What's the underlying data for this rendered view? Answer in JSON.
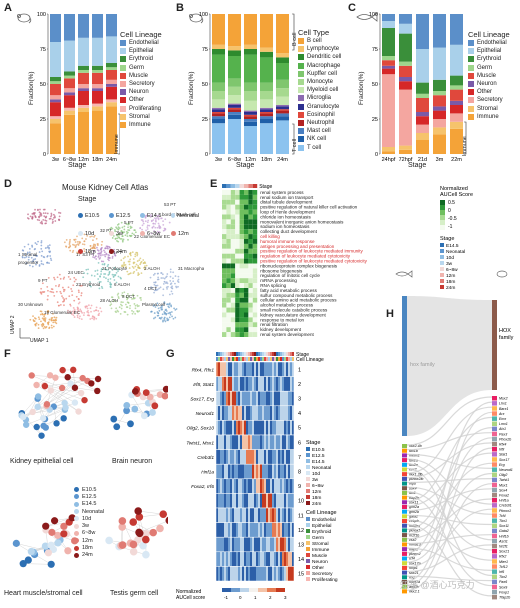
{
  "panels": {
    "a": "A",
    "b": "B",
    "c": "C",
    "d": "D",
    "e": "E",
    "f": "F",
    "g": "G",
    "h": "H"
  },
  "panelA": {
    "ylabel": "Fraction(%)",
    "xlabel": "Stage",
    "yticks": [
      "0",
      "25",
      "50",
      "75",
      "100"
    ],
    "categories": [
      "3w",
      "6~8w",
      "12m",
      "18m",
      "24m"
    ],
    "legend_title": "Cell Lineage",
    "legend": [
      {
        "name": "Endothelial",
        "color": "#5b8fc9"
      },
      {
        "name": "Epithelial",
        "color": "#a9d0ea"
      },
      {
        "name": "Erythroid",
        "color": "#3a8f3a"
      },
      {
        "name": "Germ",
        "color": "#9ed68c"
      },
      {
        "name": "Muscle",
        "color": "#e0483c"
      },
      {
        "name": "Secretory",
        "color": "#f4a6a0"
      },
      {
        "name": "Neuron",
        "color": "#7a5aa8"
      },
      {
        "name": "Other",
        "color": "#d62728"
      },
      {
        "name": "Proliferating",
        "color": "#f7b7b2"
      },
      {
        "name": "Stromal",
        "color": "#f6c36c"
      },
      {
        "name": "Immune",
        "color": "#f4a338"
      }
    ],
    "bracket_label": "Immune"
  },
  "panelB": {
    "ylabel": "Fraction(%)",
    "xlabel": "Stage",
    "yticks": [
      "0",
      "25",
      "50",
      "75",
      "100"
    ],
    "categories": [
      "3w",
      "6~8w",
      "12m",
      "18m",
      "24m"
    ],
    "legend_title": "Cell Type",
    "legend": [
      {
        "name": "B cell",
        "color": "#f4a338"
      },
      {
        "name": "Lymphocyte",
        "color": "#f6c36c"
      },
      {
        "name": "Dendritic cell",
        "color": "#2e8b2e"
      },
      {
        "name": "Macrophage",
        "color": "#55b24d"
      },
      {
        "name": "Kupffer cell",
        "color": "#7fc66e"
      },
      {
        "name": "Monocyte",
        "color": "#a6d98f"
      },
      {
        "name": "Myeloid cell",
        "color": "#c6e8b0"
      },
      {
        "name": "Microglia",
        "color": "#8c6bb1"
      },
      {
        "name": "Granulocyte",
        "color": "#2c2f8f"
      },
      {
        "name": "Eosinophil",
        "color": "#e0483c"
      },
      {
        "name": "Neutrophil",
        "color": "#b22222"
      },
      {
        "name": "Mast cell",
        "color": "#4a7fc1"
      },
      {
        "name": "NK cell",
        "color": "#1f5fa8"
      },
      {
        "name": "T cell",
        "color": "#8cc3ef"
      }
    ],
    "bracket_b": "B cell",
    "bracket_t": "T cell"
  },
  "panelC": {
    "ylabel": "Fraction(%)",
    "xlabel": "Stage",
    "yticks": [
      "0",
      "25",
      "50",
      "75",
      "100"
    ],
    "categories": [
      "24hpf",
      "72hpf",
      "21d",
      "3m",
      "22m"
    ],
    "legend_title": "Cell Lineage",
    "legend": [
      {
        "name": "Endothelial",
        "color": "#5b8fc9"
      },
      {
        "name": "Epithelial",
        "color": "#a9d0ea"
      },
      {
        "name": "Erythroid",
        "color": "#3a8f3a"
      },
      {
        "name": "Germ",
        "color": "#9ed68c"
      },
      {
        "name": "Muscle",
        "color": "#e0483c"
      },
      {
        "name": "Neuron",
        "color": "#7a5aa8"
      },
      {
        "name": "Other",
        "color": "#d62728"
      },
      {
        "name": "Secretory",
        "color": "#f4a6a0"
      },
      {
        "name": "Stromal",
        "color": "#f6c36c"
      },
      {
        "name": "Immune",
        "color": "#f4a338"
      }
    ],
    "bracket_label": "Immune"
  },
  "panelD": {
    "title": "Mouse Kidney Cell Atlas",
    "legend_title": "Stage",
    "stages": [
      {
        "name": "E10.5",
        "color": "#2c6fb3"
      },
      {
        "name": "E12.5",
        "color": "#5b95cf"
      },
      {
        "name": "E14.5",
        "color": "#8fbde3"
      },
      {
        "name": "Neonatal",
        "color": "#b9d7ee"
      },
      {
        "name": "10d",
        "color": "#d9e8f4"
      },
      {
        "name": "3w",
        "color": "#f2d9d7"
      },
      {
        "name": "6~8w",
        "color": "#f0b3ad"
      },
      {
        "name": "12m",
        "color": "#e07a73"
      },
      {
        "name": "18m",
        "color": "#c63a33"
      },
      {
        "name": "24m",
        "color": "#8b1a1a"
      }
    ],
    "umap1": "UMAP 1",
    "umap2": "UMAP 2",
    "cluster_labels": [
      "53 PT",
      "border brush cell",
      "1 Stromal",
      "progenitor",
      "32 PT",
      "17 S3 PT",
      "21 Podocyte",
      "3 ALOH",
      "22 Glomerular EC",
      "31 Macrophage",
      "24 UEC",
      "30 Unknown",
      "19 Glomerular EC",
      "8 DCT",
      "Plasma cell",
      "9 PT",
      "6 ALOH",
      "4 DCT",
      "23 Erythroid",
      "28 ALOH",
      "34 PT",
      "5 PT"
    ]
  },
  "panelE": {
    "legend_title": "Normalized AUCell Score",
    "scale_ticks": [
      "0.5",
      "0",
      "-0.5",
      "-1"
    ],
    "stage_title": "Stage",
    "stages": [
      "E14.5",
      "Neonatal",
      "10d",
      "3w",
      "6~8w",
      "12m",
      "18m",
      "24m"
    ],
    "header_label": "Stage",
    "terms": [
      {
        "label": "renal system process",
        "red": false
      },
      {
        "label": "renal sodium ion transport",
        "red": false
      },
      {
        "label": "distal tubule development",
        "red": false
      },
      {
        "label": "positive regulation of natural killer cell activation",
        "red": false
      },
      {
        "label": "loop of Henle development",
        "red": false
      },
      {
        "label": "chloride ion homeostasis",
        "red": false
      },
      {
        "label": "monovalent inorganic anion homeostasis",
        "red": false
      },
      {
        "label": "sodium ion homeostasis",
        "red": false
      },
      {
        "label": "collecting duct development",
        "red": false
      },
      {
        "label": "cell killing",
        "red": true
      },
      {
        "label": "humoral immune response",
        "red": true
      },
      {
        "label": "antigen processing and presentation",
        "red": true
      },
      {
        "label": "positive regulation of leukocyte mediated immunity",
        "red": true
      },
      {
        "label": "regulation of leukocyte mediated cytotoxicity",
        "red": true
      },
      {
        "label": "positive regulation of leukocyte mediated cytotoxicity",
        "red": true
      },
      {
        "label": "ribonucleoprotein complex biogenesis",
        "red": false
      },
      {
        "label": "ribosome biogenesis",
        "red": false
      },
      {
        "label": "regulation of mitotic cell cycle",
        "red": false
      },
      {
        "label": "mRNA processing",
        "red": false
      },
      {
        "label": "RNA splicing",
        "red": false
      },
      {
        "label": "fatty acid metabolic process",
        "red": false
      },
      {
        "label": "sulfur compound metabolic process",
        "red": false
      },
      {
        "label": "cellular amino acid metabolic process",
        "red": false
      },
      {
        "label": "alcohol metabolic process",
        "red": false
      },
      {
        "label": "small molecule catabolic process",
        "red": false
      },
      {
        "label": "kidney vasculature development",
        "red": false
      },
      {
        "label": "response to metal ion",
        "red": false
      },
      {
        "label": "renal filtration",
        "red": false
      },
      {
        "label": "kidney development",
        "red": false
      },
      {
        "label": "renal system development",
        "red": false
      }
    ]
  },
  "panelF": {
    "titles": [
      "Kidney epithelial cell",
      "Brain neuron",
      "Heart muscle/stromal cell",
      "Testis germ cell"
    ],
    "stages": [
      {
        "name": "E10.5",
        "color": "#2c6fb3"
      },
      {
        "name": "E12.5",
        "color": "#5b95cf"
      },
      {
        "name": "E14.5",
        "color": "#8fbde3"
      },
      {
        "name": "Neonatal",
        "color": "#b9d7ee"
      },
      {
        "name": "10d",
        "color": "#d9e8f4"
      },
      {
        "name": "3w",
        "color": "#f2d9d7"
      },
      {
        "name": "6~8w",
        "color": "#f0b3ad"
      },
      {
        "name": "12m",
        "color": "#e07a73"
      },
      {
        "name": "18m",
        "color": "#c63a33"
      },
      {
        "name": "24m",
        "color": "#8b1a1a"
      }
    ]
  },
  "panelG": {
    "genes": [
      "Rfx4, Rfx1",
      "Irf8, Stat1",
      "Sox17, Erg",
      "Neurod1",
      "Olig2, Sox10",
      "Twist1, Msx1",
      "Creb3l1",
      "Hnf1a",
      "Foxa2, Irf6"
    ],
    "row_numbers": [
      "1",
      "2",
      "3",
      "4",
      "5",
      "6",
      "7",
      "8",
      "9",
      "10",
      "11",
      "12",
      "13",
      "14",
      "15"
    ],
    "header_labels": [
      "Stage",
      "Cell Lineage"
    ],
    "stage_title": "Stage",
    "stage_items": [
      {
        "name": "E10.5",
        "color": "#2c6fb3"
      },
      {
        "name": "E12.5",
        "color": "#5b95cf"
      },
      {
        "name": "E14.5",
        "color": "#8fbde3"
      },
      {
        "name": "Neonatal",
        "color": "#b9d7ee"
      },
      {
        "name": "10d",
        "color": "#d9e8f4"
      },
      {
        "name": "3w",
        "color": "#f2d9d7"
      },
      {
        "name": "6~8w",
        "color": "#f0b3ad"
      },
      {
        "name": "12m",
        "color": "#e07a73"
      },
      {
        "name": "18m",
        "color": "#c63a33"
      },
      {
        "name": "24m",
        "color": "#8b1a1a"
      }
    ],
    "lineage_title": "Cell Lineage",
    "lineage_items": [
      {
        "name": "Endothelial",
        "color": "#5b8fc9"
      },
      {
        "name": "Epithelial",
        "color": "#a9d0ea"
      },
      {
        "name": "Erythroid",
        "color": "#3a8f3a"
      },
      {
        "name": "Germ",
        "color": "#9ed68c"
      },
      {
        "name": "Stromal",
        "color": "#f6c36c"
      },
      {
        "name": "Immune",
        "color": "#f4a338"
      },
      {
        "name": "Muscle",
        "color": "#e0483c"
      },
      {
        "name": "Neuron",
        "color": "#7a5aa8"
      },
      {
        "name": "Other",
        "color": "#d62728"
      },
      {
        "name": "Secretory",
        "color": "#f4a6a0"
      },
      {
        "name": "Proliferating",
        "color": "#f7b7b2"
      }
    ],
    "scale_title": "Normalized AUCell score",
    "scale_ticks": [
      "-1",
      "0",
      "1",
      "2",
      "3"
    ]
  },
  "panelH": {
    "left_label": "hox family",
    "right_label": "HOX family",
    "left_genes": [
      "nkx2.4b",
      "tbx1b",
      "meox1",
      "tbx1a",
      "tbx2a",
      "evx2",
      "nkx1.2lb",
      "pknox2lb",
      "otpb",
      "sox4",
      "tbx1",
      "tfap2b",
      "sox11",
      "grhl2a",
      "grhl2b",
      "gata2",
      "cebpb",
      "hnf1ba",
      "pknox1",
      "nr2f1b",
      "vsx2",
      "hoxa13",
      "mier1",
      "pknox2",
      "tcf4",
      "sox17a",
      "foxp1",
      "sox21",
      "rfx2",
      "mier1a",
      "aml3b",
      "nkx2.1"
    ],
    "right_genes": [
      "Msx2",
      "Lhx1",
      "Barx1",
      "Arx",
      "Emx",
      "Lmx1",
      "Alx1",
      "Pax3",
      "Phox2b",
      "Rfx4",
      "Irf8",
      "Stat1",
      "Sox17",
      "Erg",
      "Neurod1",
      "Olig2",
      "Twist1",
      "Msx1",
      "Sox4",
      "Foxa2",
      "Hnf1a",
      "Creb3l1",
      "Pknox1",
      "Tcf4",
      "Tbx1",
      "Sox11",
      "Gata2",
      "Hnf1b",
      "Ascl1",
      "Nr2f1",
      "Sox21",
      "Rfx2",
      "Mier1",
      "Tcf12",
      "Irf6",
      "Tbx2",
      "Pax6",
      "Sox9",
      "Foxp1",
      "Tfap2b"
    ],
    "bottom_left": "tfap2b"
  },
  "watermark": "知乎 @酒心巧克力"
}
